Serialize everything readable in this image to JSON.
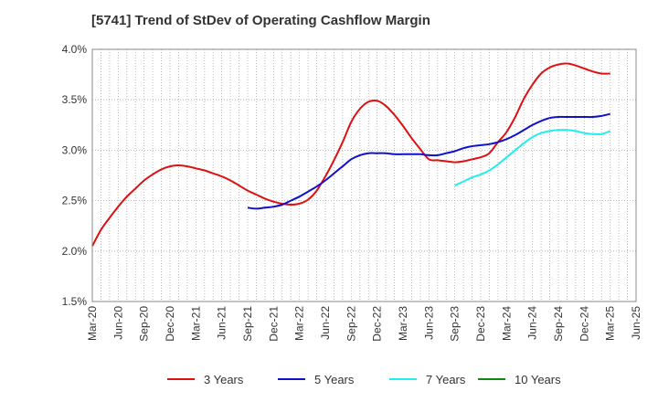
{
  "chart_data": {
    "type": "line",
    "title": "[5741]  Trend of StDev of Operating Cashflow Margin",
    "xlabel": "",
    "ylabel": "",
    "x_ticks": [
      "Mar-20",
      "Jun-20",
      "Sep-20",
      "Dec-20",
      "Mar-21",
      "Jun-21",
      "Sep-21",
      "Dec-21",
      "Mar-22",
      "Jun-22",
      "Sep-22",
      "Dec-22",
      "Mar-23",
      "Jun-23",
      "Sep-23",
      "Dec-23",
      "Mar-24",
      "Jun-24",
      "Sep-24",
      "Dec-24",
      "Mar-25",
      "Jun-25"
    ],
    "y_ticks": [
      "1.5%",
      "2.0%",
      "2.5%",
      "3.0%",
      "3.5%",
      "4.0%"
    ],
    "ylim": [
      1.5,
      4.0
    ],
    "grid": true,
    "legend_position": "bottom",
    "series": [
      {
        "name": "3 Years",
        "color": "#dd1111",
        "points": [
          [
            "Mar-20",
            2.05
          ],
          [
            "Apr-20",
            2.21
          ],
          [
            "May-20",
            2.33
          ],
          [
            "Jun-20",
            2.44
          ],
          [
            "Jul-20",
            2.54
          ],
          [
            "Aug-20",
            2.62
          ],
          [
            "Sep-20",
            2.7
          ],
          [
            "Oct-20",
            2.76
          ],
          [
            "Nov-20",
            2.81
          ],
          [
            "Dec-20",
            2.84
          ],
          [
            "Jan-21",
            2.85
          ],
          [
            "Feb-21",
            2.84
          ],
          [
            "Mar-21",
            2.82
          ],
          [
            "Apr-21",
            2.8
          ],
          [
            "May-21",
            2.77
          ],
          [
            "Jun-21",
            2.74
          ],
          [
            "Jul-21",
            2.7
          ],
          [
            "Aug-21",
            2.65
          ],
          [
            "Sep-21",
            2.6
          ],
          [
            "Oct-21",
            2.56
          ],
          [
            "Nov-21",
            2.52
          ],
          [
            "Dec-21",
            2.49
          ],
          [
            "Jan-22",
            2.47
          ],
          [
            "Feb-22",
            2.46
          ],
          [
            "Mar-22",
            2.47
          ],
          [
            "Apr-22",
            2.51
          ],
          [
            "May-22",
            2.6
          ],
          [
            "Jun-22",
            2.74
          ],
          [
            "Jul-22",
            2.9
          ],
          [
            "Aug-22",
            3.08
          ],
          [
            "Sep-22",
            3.28
          ],
          [
            "Oct-22",
            3.41
          ],
          [
            "Nov-22",
            3.48
          ],
          [
            "Dec-22",
            3.49
          ],
          [
            "Jan-23",
            3.44
          ],
          [
            "Feb-23",
            3.35
          ],
          [
            "Mar-23",
            3.24
          ],
          [
            "Apr-23",
            3.12
          ],
          [
            "May-23",
            3.01
          ],
          [
            "Jun-23",
            2.91
          ],
          [
            "Jul-23",
            2.9
          ],
          [
            "Aug-23",
            2.89
          ],
          [
            "Sep-23",
            2.88
          ],
          [
            "Oct-23",
            2.89
          ],
          [
            "Nov-23",
            2.91
          ],
          [
            "Dec-23",
            2.93
          ],
          [
            "Jan-24",
            2.97
          ],
          [
            "Feb-24",
            3.08
          ],
          [
            "Mar-24",
            3.18
          ],
          [
            "Apr-24",
            3.33
          ],
          [
            "May-24",
            3.51
          ],
          [
            "Jun-24",
            3.65
          ],
          [
            "Jul-24",
            3.76
          ],
          [
            "Aug-24",
            3.82
          ],
          [
            "Sep-24",
            3.85
          ],
          [
            "Oct-24",
            3.86
          ],
          [
            "Nov-24",
            3.84
          ],
          [
            "Dec-24",
            3.81
          ],
          [
            "Jan-25",
            3.78
          ],
          [
            "Feb-25",
            3.76
          ],
          [
            "Mar-25",
            3.76
          ]
        ]
      },
      {
        "name": "5 Years",
        "color": "#1111cc",
        "points": [
          [
            "Sep-21",
            2.43
          ],
          [
            "Oct-21",
            2.42
          ],
          [
            "Nov-21",
            2.43
          ],
          [
            "Dec-21",
            2.44
          ],
          [
            "Jan-22",
            2.46
          ],
          [
            "Feb-22",
            2.5
          ],
          [
            "Mar-22",
            2.54
          ],
          [
            "Apr-22",
            2.59
          ],
          [
            "May-22",
            2.64
          ],
          [
            "Jun-22",
            2.7
          ],
          [
            "Jul-22",
            2.77
          ],
          [
            "Aug-22",
            2.84
          ],
          [
            "Sep-22",
            2.91
          ],
          [
            "Oct-22",
            2.95
          ],
          [
            "Nov-22",
            2.97
          ],
          [
            "Dec-22",
            2.97
          ],
          [
            "Jan-23",
            2.97
          ],
          [
            "Feb-23",
            2.96
          ],
          [
            "Mar-23",
            2.96
          ],
          [
            "Apr-23",
            2.96
          ],
          [
            "May-23",
            2.96
          ],
          [
            "Jun-23",
            2.95
          ],
          [
            "Jul-23",
            2.95
          ],
          [
            "Aug-23",
            2.97
          ],
          [
            "Sep-23",
            2.99
          ],
          [
            "Oct-23",
            3.02
          ],
          [
            "Nov-23",
            3.04
          ],
          [
            "Dec-23",
            3.05
          ],
          [
            "Jan-24",
            3.06
          ],
          [
            "Feb-24",
            3.08
          ],
          [
            "Mar-24",
            3.11
          ],
          [
            "Apr-24",
            3.15
          ],
          [
            "May-24",
            3.2
          ],
          [
            "Jun-24",
            3.25
          ],
          [
            "Jul-24",
            3.29
          ],
          [
            "Aug-24",
            3.32
          ],
          [
            "Sep-24",
            3.33
          ],
          [
            "Oct-24",
            3.33
          ],
          [
            "Nov-24",
            3.33
          ],
          [
            "Dec-24",
            3.33
          ],
          [
            "Jan-25",
            3.33
          ],
          [
            "Feb-25",
            3.34
          ],
          [
            "Mar-25",
            3.36
          ]
        ]
      },
      {
        "name": "7 Years",
        "color": "#22eeee",
        "points": [
          [
            "Sep-23",
            2.65
          ],
          [
            "Oct-23",
            2.69
          ],
          [
            "Nov-23",
            2.73
          ],
          [
            "Dec-23",
            2.76
          ],
          [
            "Jan-24",
            2.8
          ],
          [
            "Feb-24",
            2.86
          ],
          [
            "Mar-24",
            2.93
          ],
          [
            "Apr-24",
            3.0
          ],
          [
            "May-24",
            3.07
          ],
          [
            "Jun-24",
            3.13
          ],
          [
            "Jul-24",
            3.17
          ],
          [
            "Aug-24",
            3.19
          ],
          [
            "Sep-24",
            3.2
          ],
          [
            "Oct-24",
            3.2
          ],
          [
            "Nov-24",
            3.19
          ],
          [
            "Dec-24",
            3.17
          ],
          [
            "Jan-25",
            3.16
          ],
          [
            "Feb-25",
            3.16
          ],
          [
            "Mar-25",
            3.19
          ]
        ]
      },
      {
        "name": "10 Years",
        "color": "#118811",
        "points": []
      }
    ]
  }
}
